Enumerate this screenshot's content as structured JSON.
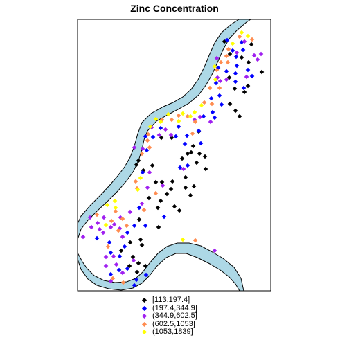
{
  "title": "Zinc Concentration",
  "legend": [
    {
      "label": "[113,197.4]",
      "color": "#000000"
    },
    {
      "label": "(197.4,344.9]",
      "color": "#0000ff"
    },
    {
      "label": "(344.9,602.5]",
      "color": "#a020f0"
    },
    {
      "label": "(602.5,1053]",
      "color": "#ff8c50"
    },
    {
      "label": "(1053,1839]",
      "color": "#ffff00"
    }
  ],
  "river_color": "#add8e6",
  "points": {
    "0": [
      [
        200,
        232
      ],
      [
        197,
        238
      ],
      [
        207,
        246
      ],
      [
        220,
        239
      ],
      [
        248,
        199
      ],
      [
        201,
        317
      ],
      [
        225,
        263
      ],
      [
        234,
        263
      ],
      [
        249,
        262
      ],
      [
        247,
        273
      ],
      [
        268,
        271
      ],
      [
        280,
        269
      ],
      [
        275,
        282
      ],
      [
        241,
        280
      ],
      [
        232,
        290
      ],
      [
        215,
        286
      ],
      [
        228,
        300
      ],
      [
        252,
        298
      ],
      [
        259,
        304
      ],
      [
        229,
        328
      ],
      [
        203,
        346
      ],
      [
        205,
        354
      ],
      [
        188,
        350
      ],
      [
        175,
        362
      ],
      [
        192,
        371
      ],
      [
        200,
        380
      ],
      [
        187,
        384
      ],
      [
        198,
        393
      ],
      [
        210,
        384
      ],
      [
        263,
        229
      ],
      [
        288,
        222
      ],
      [
        284,
        235
      ],
      [
        297,
        244
      ],
      [
        287,
        190
      ],
      [
        296,
        226
      ],
      [
        279,
        211
      ],
      [
        271,
        222
      ],
      [
        353,
        133
      ],
      [
        358,
        124
      ],
      [
        339,
        128
      ],
      [
        331,
        112
      ],
      [
        332,
        150
      ],
      [
        340,
        160
      ],
      [
        346,
        168
      ],
      [
        349,
        83
      ],
      [
        359,
        90
      ],
      [
        378,
        104
      ],
      [
        324,
        60
      ],
      [
        332,
        78
      ],
      [
        363,
        64
      ],
      [
        268,
        256
      ],
      [
        233,
        199
      ],
      [
        276,
        220
      ]
    ],
    "1": [
      [
        210,
        197
      ],
      [
        221,
        198
      ],
      [
        212,
        217
      ],
      [
        232,
        185
      ],
      [
        258,
        183
      ],
      [
        254,
        197
      ],
      [
        270,
        196
      ],
      [
        267,
        208
      ],
      [
        271,
        239
      ],
      [
        260,
        242
      ],
      [
        287,
        189
      ],
      [
        305,
        142
      ],
      [
        320,
        151
      ],
      [
        294,
        168
      ],
      [
        307,
        162
      ],
      [
        290,
        207
      ],
      [
        194,
        326
      ],
      [
        210,
        326
      ],
      [
        184,
        336
      ],
      [
        140,
        344
      ],
      [
        158,
        350
      ],
      [
        160,
        365
      ],
      [
        173,
        370
      ],
      [
        180,
        356
      ],
      [
        172,
        390
      ],
      [
        160,
        396
      ],
      [
        197,
        404
      ],
      [
        211,
        397
      ],
      [
        194,
        412
      ],
      [
        184,
        388
      ],
      [
        327,
        103
      ],
      [
        315,
        98
      ],
      [
        340,
        106
      ],
      [
        340,
        118
      ],
      [
        352,
        127
      ],
      [
        342,
        95
      ],
      [
        341,
        82
      ],
      [
        336,
        73
      ],
      [
        328,
        58
      ],
      [
        312,
        120
      ],
      [
        317,
        138
      ],
      [
        358,
        101
      ],
      [
        351,
        72
      ],
      [
        349,
        61
      ],
      [
        364,
        110
      ],
      [
        310,
        170
      ],
      [
        206,
        249
      ],
      [
        201,
        300
      ],
      [
        237,
        313
      ]
    ],
    "2": [
      [
        194,
        213
      ],
      [
        206,
        215
      ],
      [
        219,
        184
      ],
      [
        239,
        187
      ],
      [
        230,
        195
      ],
      [
        247,
        195
      ],
      [
        213,
        271
      ],
      [
        205,
        294
      ],
      [
        188,
        306
      ],
      [
        174,
        314
      ],
      [
        165,
        324
      ],
      [
        160,
        328
      ],
      [
        144,
        331
      ],
      [
        132,
        328
      ],
      [
        130,
        314
      ],
      [
        150,
        314
      ],
      [
        141,
        322
      ],
      [
        120,
        342
      ],
      [
        173,
        330
      ],
      [
        177,
        342
      ],
      [
        149,
        336
      ],
      [
        153,
        371
      ],
      [
        168,
        382
      ],
      [
        160,
        406
      ],
      [
        177,
        394
      ],
      [
        193,
        376
      ],
      [
        310,
        362
      ],
      [
        216,
        249
      ],
      [
        265,
        244
      ],
      [
        281,
        173
      ],
      [
        289,
        169
      ],
      [
        327,
        115
      ],
      [
        313,
        84
      ],
      [
        318,
        117
      ],
      [
        342,
        76
      ],
      [
        353,
        60
      ],
      [
        372,
        86
      ],
      [
        356,
        111
      ],
      [
        367,
        80
      ],
      [
        377,
        78
      ],
      [
        314,
        112
      ],
      [
        304,
        176
      ],
      [
        164,
        370
      ],
      [
        153,
        384
      ],
      [
        235,
        268
      ]
    ],
    "3": [
      [
        213,
        203
      ],
      [
        216,
        213
      ],
      [
        205,
        222
      ],
      [
        214,
        194
      ],
      [
        234,
        173
      ],
      [
        248,
        173
      ],
      [
        271,
        168
      ],
      [
        282,
        176
      ],
      [
        258,
        167
      ],
      [
        196,
        262
      ],
      [
        198,
        272
      ],
      [
        225,
        279
      ],
      [
        183,
        326
      ],
      [
        161,
        319
      ],
      [
        167,
        305
      ],
      [
        140,
        310
      ],
      [
        177,
        316
      ],
      [
        156,
        356
      ],
      [
        178,
        408
      ],
      [
        163,
        402
      ],
      [
        282,
        347
      ],
      [
        319,
        90
      ],
      [
        313,
        101
      ],
      [
        303,
        127
      ],
      [
        317,
        127
      ],
      [
        306,
        150
      ],
      [
        329,
        90
      ],
      [
        327,
        81
      ],
      [
        364,
        57
      ],
      [
        346,
        53
      ],
      [
        330,
        71
      ],
      [
        278,
        193
      ],
      [
        295,
        148
      ],
      [
        208,
        303
      ],
      [
        171,
        333
      ]
    ],
    "4": [
      [
        217,
        183
      ],
      [
        225,
        172
      ],
      [
        232,
        176
      ],
      [
        243,
        165
      ],
      [
        258,
        175
      ],
      [
        264,
        164
      ],
      [
        281,
        162
      ],
      [
        275,
        168
      ],
      [
        199,
        274
      ],
      [
        203,
        257
      ],
      [
        155,
        296
      ],
      [
        166,
        290
      ],
      [
        153,
        325
      ],
      [
        167,
        300
      ],
      [
        264,
        346
      ],
      [
        349,
        47
      ],
      [
        358,
        52
      ],
      [
        336,
        63
      ],
      [
        311,
        115
      ],
      [
        310,
        96
      ],
      [
        291,
        152
      ]
    ]
  }
}
